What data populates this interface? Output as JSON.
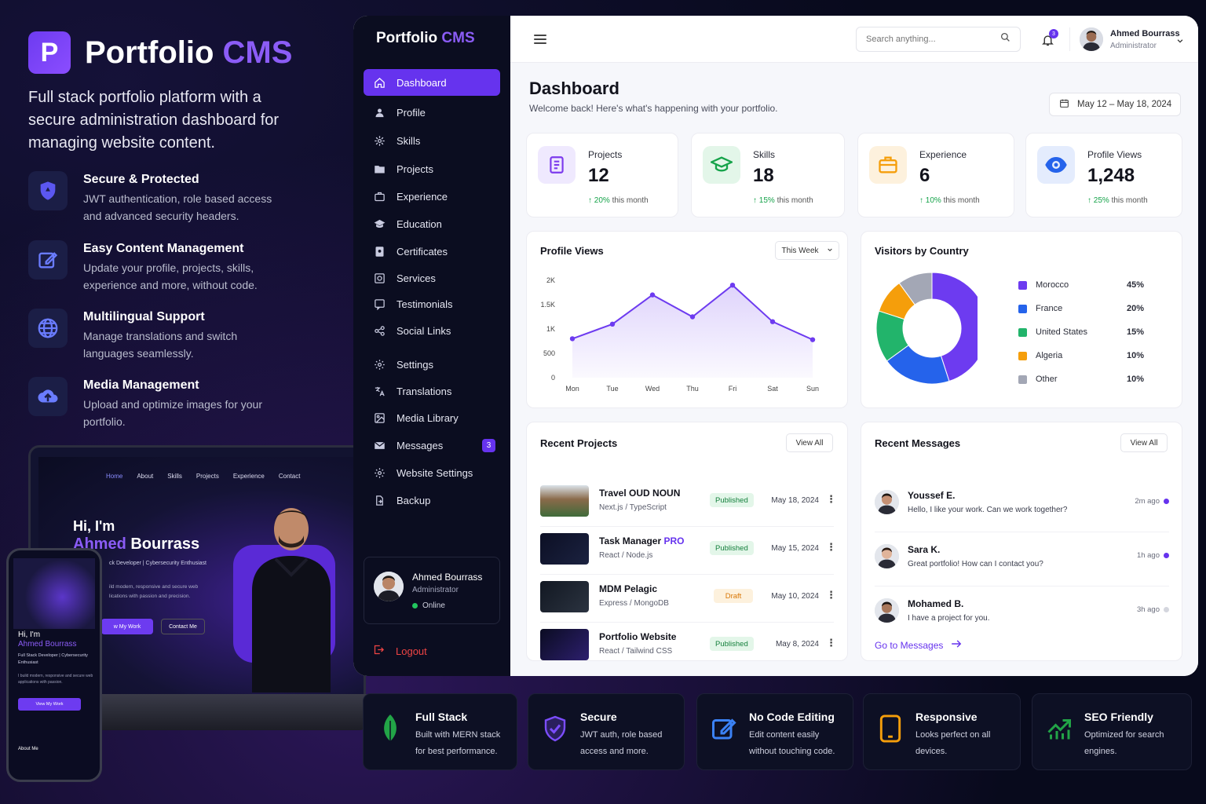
{
  "hero": {
    "brand_letter": "P",
    "brand_name": "Portfolio",
    "brand_accent": "CMS",
    "tagline": "Full stack portfolio platform with a secure administration dashboard for managing website content.",
    "features": [
      {
        "title": "Secure & Protected",
        "desc": "JWT authentication, role based access and advanced security headers.",
        "icon": "shield-icon"
      },
      {
        "title": "Easy Content Management",
        "desc": "Update your profile, projects, skills, experience and more, without code.",
        "icon": "edit-icon"
      },
      {
        "title": "Multilingual Support",
        "desc": "Manage translations and switch languages seamlessly.",
        "icon": "globe-icon"
      },
      {
        "title": "Media Management",
        "desc": "Upload and optimize images for your portfolio.",
        "icon": "cloud-upload-icon"
      }
    ]
  },
  "laptop": {
    "nav": [
      "Home",
      "About",
      "Skills",
      "Projects",
      "Experience",
      "Contact"
    ],
    "hi": "Hi, I'm",
    "first": "Ahmed",
    "last": "Bourrass",
    "role": "ck Developer | Cybersecurity Enthusiast",
    "sub": "ild modern, responsive and secure web lications with passion and precision.",
    "btn1": "w My Work",
    "btn2": "Contact Me"
  },
  "phone": {
    "hi": "Hi, I'm",
    "name": "Ahmed Bourrass",
    "role": "Full Stack Developer | Cybersecurity Enthusiast",
    "desc": "I build modern, responsive and secure web applications with passion.",
    "btn": "View My Work",
    "about": "About Me"
  },
  "sidebar": {
    "brand_name": "Portfolio",
    "brand_accent": "CMS",
    "items": [
      {
        "label": "Dashboard",
        "icon": "home-icon",
        "active": true
      },
      {
        "label": "Profile",
        "icon": "user-icon"
      },
      {
        "label": "Skills",
        "icon": "skills-icon"
      },
      {
        "label": "Projects",
        "icon": "folder-icon"
      },
      {
        "label": "Experience",
        "icon": "briefcase-icon"
      },
      {
        "label": "Education",
        "icon": "graduation-icon"
      },
      {
        "label": "Certificates",
        "icon": "certificate-icon"
      },
      {
        "label": "Services",
        "icon": "services-icon"
      },
      {
        "label": "Testimonials",
        "icon": "quote-icon"
      },
      {
        "label": "Social Links",
        "icon": "share-icon"
      },
      {
        "label": "Settings",
        "icon": "gear-icon"
      },
      {
        "label": "Translations",
        "icon": "translate-icon"
      },
      {
        "label": "Media Library",
        "icon": "image-icon"
      },
      {
        "label": "Messages",
        "icon": "mail-icon",
        "badge": "3"
      },
      {
        "label": "Website Settings",
        "icon": "gear-icon"
      },
      {
        "label": "Backup",
        "icon": "backup-icon"
      }
    ],
    "user": {
      "name": "Ahmed Bourrass",
      "role": "Administrator",
      "status": "Online"
    },
    "logout": "Logout"
  },
  "topbar": {
    "search_placeholder": "Search anything...",
    "notif_count": "3",
    "user_name": "Ahmed Bourrass",
    "user_role": "Administrator"
  },
  "page": {
    "title": "Dashboard",
    "subtitle": "Welcome back! Here's what's happening with your portfolio.",
    "date_range": "May 12 – May 18, 2024"
  },
  "stats": [
    {
      "label": "Projects",
      "value": "12",
      "delta": "20%",
      "period": "this month",
      "icon": "document-icon",
      "color": "#7c3aed",
      "bg": "#efe9fe"
    },
    {
      "label": "Skills",
      "value": "18",
      "delta": "15%",
      "period": "this month",
      "icon": "graduation-cap-icon",
      "color": "#16a34a",
      "bg": "#e3f6e9"
    },
    {
      "label": "Experience",
      "value": "6",
      "delta": "10%",
      "period": "this month",
      "icon": "briefcase-icon",
      "color": "#f59e0b",
      "bg": "#fdf1dd"
    },
    {
      "label": "Profile Views",
      "value": "1,248",
      "delta": "25%",
      "period": "this month",
      "icon": "eye-icon",
      "color": "#2563eb",
      "bg": "#e4ecfd"
    }
  ],
  "profile_views": {
    "title": "Profile Views",
    "range": "This Week"
  },
  "visitors": {
    "title": "Visitors by Country"
  },
  "chart_data": [
    {
      "type": "area",
      "title": "Profile Views",
      "categories": [
        "Mon",
        "Tue",
        "Wed",
        "Thu",
        "Fri",
        "Sat",
        "Sun"
      ],
      "values": [
        800,
        1100,
        1700,
        1250,
        1900,
        1150,
        780
      ],
      "yticks": [
        "0",
        "500",
        "1K",
        "1.5K",
        "2K"
      ],
      "ylim": [
        0,
        2000
      ],
      "color": "#6d3bf0"
    },
    {
      "type": "pie",
      "title": "Visitors by Country",
      "labels": [
        "Morocco",
        "France",
        "United States",
        "Algeria",
        "Other"
      ],
      "values": [
        45,
        20,
        15,
        10,
        10
      ],
      "display": [
        "45%",
        "20%",
        "15%",
        "10%",
        "10%"
      ],
      "colors": [
        "#6d3bf0",
        "#2563eb",
        "#22b46b",
        "#f59e0b",
        "#a3a7b5"
      ]
    }
  ],
  "recent_projects": {
    "title": "Recent Projects",
    "view_all": "View All",
    "items": [
      {
        "name": "Travel OUD NOUN",
        "accent": "",
        "stack": "Next.js / TypeScript",
        "status": "Published",
        "date": "May 18, 2024"
      },
      {
        "name": "Task Manager",
        "accent": "PRO",
        "stack": "React / Node.js",
        "status": "Published",
        "date": "May 15, 2024"
      },
      {
        "name": "MDM Pelagic",
        "accent": "",
        "stack": "Express / MongoDB",
        "status": "Draft",
        "date": "May 10, 2024"
      },
      {
        "name": "Portfolio Website",
        "accent": "",
        "stack": "React / Tailwind CSS",
        "status": "Published",
        "date": "May 8, 2024"
      }
    ]
  },
  "recent_messages": {
    "title": "Recent Messages",
    "view_all": "View All",
    "items": [
      {
        "name": "Youssef E.",
        "text": "Hello, I like your work. Can we work together?",
        "time": "2m ago",
        "unread": true
      },
      {
        "name": "Sara K.",
        "text": "Great portfolio! How can I contact you?",
        "time": "1h ago",
        "unread": true
      },
      {
        "name": "Mohamed B.",
        "text": "I have a project for you.",
        "time": "3h ago",
        "unread": false
      }
    ],
    "goto": "Go to Messages"
  },
  "bottom_features": [
    {
      "title": "Full Stack",
      "desc": "Built with MERN stack for best performance.",
      "icon": "leaf-icon",
      "color": "#22a447"
    },
    {
      "title": "Secure",
      "desc": "JWT auth, role based access and more.",
      "icon": "shield-check-icon",
      "color": "#7c4dff"
    },
    {
      "title": "No Code Editing",
      "desc": "Edit content easily without touching code.",
      "icon": "edit-icon",
      "color": "#3b82f6"
    },
    {
      "title": "Responsive",
      "desc": "Looks perfect on all devices.",
      "icon": "tablet-icon",
      "color": "#f59e0b"
    },
    {
      "title": "SEO Friendly",
      "desc": "Optimized for search engines.",
      "icon": "chart-up-icon",
      "color": "#22a447"
    }
  ]
}
